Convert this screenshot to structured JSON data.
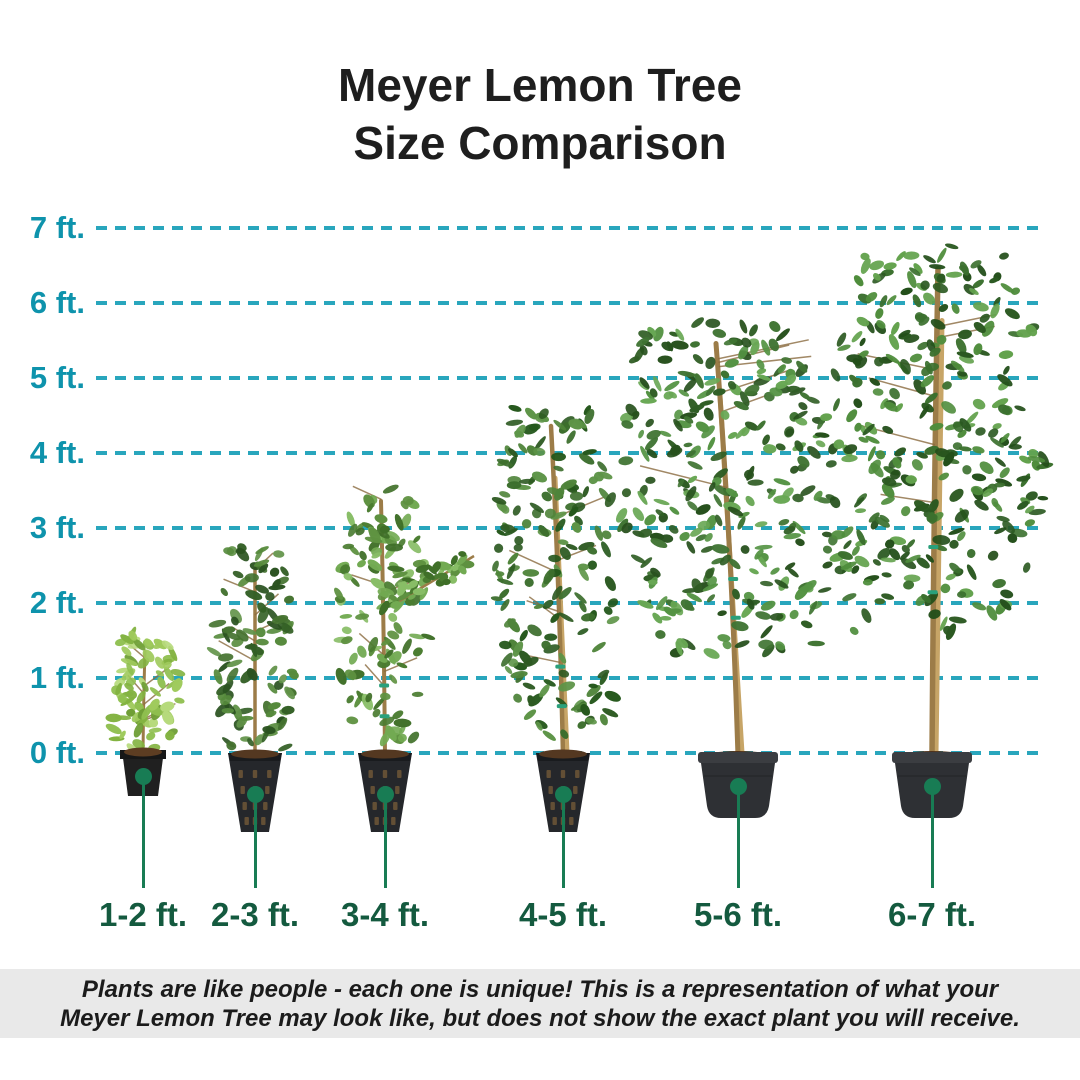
{
  "title": {
    "line1": "Meyer Lemon Tree",
    "line2": "Size Comparison"
  },
  "colors": {
    "axis_teal": "#0e93ac",
    "gridline_teal": "#29a6bd",
    "category_green": "#145a3f",
    "connector_green": "#187c54",
    "title_text": "#1e1e1e",
    "disclaimer_bg": "#e9e9e9"
  },
  "chart_data": {
    "type": "size-comparison-pictorial",
    "title": "Meyer Lemon Tree Size Comparison",
    "unit": "ft",
    "ylim": [
      0,
      7
    ],
    "grid": "dashed-horizontal",
    "yticks": [
      {
        "label": "7 ft.",
        "value": 7
      },
      {
        "label": "6 ft.",
        "value": 6
      },
      {
        "label": "5 ft.",
        "value": 5
      },
      {
        "label": "4 ft.",
        "value": 4
      },
      {
        "label": "3 ft.",
        "value": 3
      },
      {
        "label": "2 ft.",
        "value": 2
      },
      {
        "label": "1 ft.",
        "value": 1
      },
      {
        "label": "0 ft.",
        "value": 0
      }
    ],
    "categories": [
      "1-2 ft.",
      "2-3 ft.",
      "3-4 ft.",
      "4-5 ft.",
      "5-6 ft.",
      "6-7 ft."
    ],
    "approx_tree_top_ft": [
      1.6,
      2.7,
      3.6,
      4.6,
      5.7,
      6.7
    ],
    "pot_styles": [
      "small-square",
      "tall-tapered",
      "tall-tapered",
      "tall-tapered",
      "round-nursery",
      "round-nursery"
    ]
  },
  "disclaimer": {
    "line1": "Plants are like people - each one is unique! This is a representation of what your",
    "line2": "Meyer Lemon Tree may look like, but does not show the exact plant you will receive."
  }
}
